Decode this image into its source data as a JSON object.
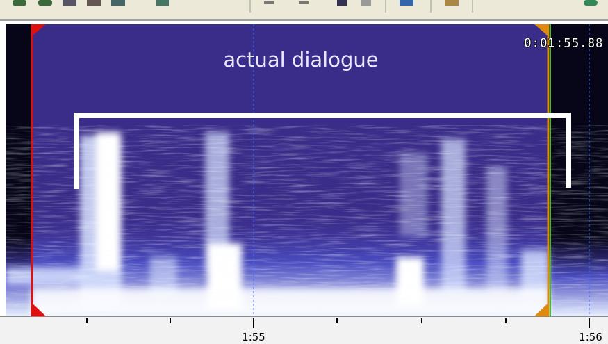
{
  "time_display": "0:01:55.88",
  "annotation": "actual dialogue",
  "timeline": {
    "labels": [
      "1:55",
      "1:56"
    ]
  }
}
